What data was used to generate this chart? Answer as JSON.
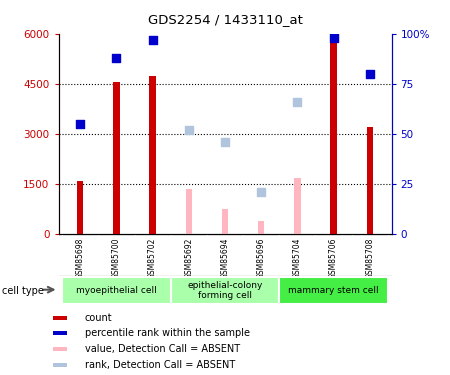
{
  "title": "GDS2254 / 1433110_at",
  "samples": [
    "GSM85698",
    "GSM85700",
    "GSM85702",
    "GSM85692",
    "GSM85694",
    "GSM85696",
    "GSM85704",
    "GSM85706",
    "GSM85708"
  ],
  "count_values": [
    1600,
    4550,
    4750,
    null,
    null,
    null,
    null,
    5900,
    3200
  ],
  "rank_values_pct": [
    55,
    88,
    97,
    null,
    null,
    null,
    null,
    98,
    80
  ],
  "absent_count": [
    null,
    null,
    null,
    1350,
    750,
    400,
    1700,
    null,
    null
  ],
  "absent_rank_pct": [
    null,
    null,
    null,
    52,
    46,
    21,
    66,
    null,
    null
  ],
  "ylim_left": [
    0,
    6000
  ],
  "ylim_right": [
    0,
    100
  ],
  "yticks_left": [
    0,
    1500,
    3000,
    4500,
    6000
  ],
  "ytick_labels_left": [
    "0",
    "1500",
    "3000",
    "4500",
    "6000"
  ],
  "yticks_right": [
    0,
    25,
    50,
    75,
    100
  ],
  "ytick_labels_right": [
    "0",
    "25",
    "50",
    "75",
    "100%"
  ],
  "bar_width": 0.18,
  "count_color": "#CC0000",
  "rank_color": "#0000CC",
  "absent_count_color": "#FFB6C1",
  "absent_rank_color": "#B0C4DE",
  "group_defs": [
    {
      "start": 0,
      "end": 2,
      "name": "myoepithelial cell",
      "color": "#AAFFAA"
    },
    {
      "start": 3,
      "end": 5,
      "name": "epithelial-colony\nforming cell",
      "color": "#AAFFAA"
    },
    {
      "start": 6,
      "end": 8,
      "name": "mammary stem cell",
      "color": "#44EE44"
    }
  ],
  "legend_items": [
    {
      "label": "count",
      "color": "#CC0000"
    },
    {
      "label": "percentile rank within the sample",
      "color": "#0000CC"
    },
    {
      "label": "value, Detection Call = ABSENT",
      "color": "#FFB6C1"
    },
    {
      "label": "rank, Detection Call = ABSENT",
      "color": "#B0C4DE"
    }
  ]
}
